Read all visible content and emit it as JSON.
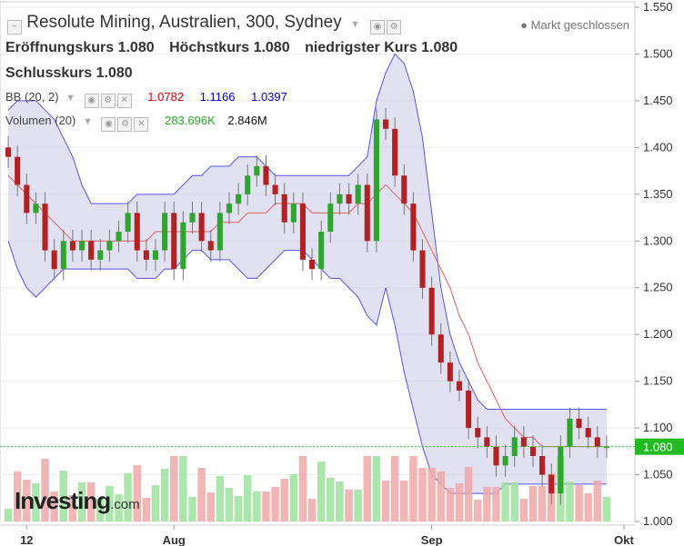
{
  "header": {
    "title": "Resolute Mining, Australien, 300, Sydney",
    "market_status": "Markt geschlossen",
    "open_label": "Eröffnungskurs",
    "open_value": "1.080",
    "high_label": "Höchstkurs",
    "high_value": "1.080",
    "low_label": "niedrigster Kurs",
    "low_value": "1.080",
    "close_label": "Schlusskurs",
    "close_value": "1.080"
  },
  "indicators": {
    "bb_label": "BB (20, 2)",
    "bb_mid": "1.0782",
    "bb_upper": "1.1166",
    "bb_lower": "1.0397",
    "vol_label": "Volumen (20)",
    "vol_value": "283.696K",
    "vol_ma": "2.846M"
  },
  "logo": {
    "name": "Investing",
    "suffix": ".com"
  },
  "last_price_tag": "1.080",
  "chart_data": {
    "type": "candlestick",
    "yticks": [
      "1.550",
      "1.500",
      "1.450",
      "1.400",
      "1.350",
      "1.300",
      "1.250",
      "1.200",
      "1.150",
      "1.100",
      "1.050",
      "1.000"
    ],
    "ylim": [
      1.0,
      1.55
    ],
    "xticks": [
      {
        "label": "12",
        "i": 2
      },
      {
        "label": "Aug",
        "i": 18
      },
      {
        "label": "Sep",
        "i": 46
      },
      {
        "label": "Okt",
        "i": 69
      }
    ],
    "close": [
      1.39,
      1.36,
      1.33,
      1.34,
      1.29,
      1.27,
      1.3,
      1.29,
      1.3,
      1.28,
      1.29,
      1.3,
      1.31,
      1.33,
      1.29,
      1.28,
      1.29,
      1.33,
      1.27,
      1.32,
      1.33,
      1.3,
      1.29,
      1.33,
      1.34,
      1.35,
      1.37,
      1.38,
      1.36,
      1.35,
      1.32,
      1.34,
      1.28,
      1.27,
      1.31,
      1.34,
      1.35,
      1.34,
      1.36,
      1.3,
      1.43,
      1.42,
      1.37,
      1.34,
      1.29,
      1.25,
      1.2,
      1.17,
      1.15,
      1.14,
      1.1,
      1.09,
      1.08,
      1.06,
      1.07,
      1.09,
      1.08,
      1.07,
      1.05,
      1.03,
      1.08,
      1.11,
      1.1,
      1.09,
      1.08,
      1.08
    ],
    "bb_mid": [
      1.37,
      1.36,
      1.35,
      1.34,
      1.33,
      1.32,
      1.31,
      1.3,
      1.3,
      1.3,
      1.3,
      1.3,
      1.3,
      1.3,
      1.3,
      1.3,
      1.31,
      1.31,
      1.31,
      1.31,
      1.31,
      1.31,
      1.31,
      1.32,
      1.32,
      1.32,
      1.33,
      1.33,
      1.33,
      1.34,
      1.34,
      1.34,
      1.34,
      1.33,
      1.33,
      1.33,
      1.33,
      1.33,
      1.34,
      1.34,
      1.35,
      1.36,
      1.35,
      1.34,
      1.33,
      1.31,
      1.29,
      1.27,
      1.25,
      1.22,
      1.2,
      1.17,
      1.15,
      1.13,
      1.11,
      1.1,
      1.09,
      1.09,
      1.08,
      1.08,
      1.08,
      1.08,
      1.08,
      1.08,
      1.08,
      1.08
    ],
    "bb_upper": [
      1.44,
      1.45,
      1.45,
      1.45,
      1.44,
      1.43,
      1.41,
      1.39,
      1.36,
      1.34,
      1.34,
      1.34,
      1.34,
      1.34,
      1.35,
      1.35,
      1.35,
      1.35,
      1.35,
      1.36,
      1.37,
      1.37,
      1.38,
      1.38,
      1.38,
      1.39,
      1.39,
      1.39,
      1.38,
      1.37,
      1.37,
      1.37,
      1.37,
      1.37,
      1.37,
      1.37,
      1.37,
      1.37,
      1.38,
      1.39,
      1.45,
      1.48,
      1.5,
      1.49,
      1.46,
      1.41,
      1.33,
      1.25,
      1.2,
      1.17,
      1.15,
      1.13,
      1.12,
      1.12,
      1.12,
      1.12,
      1.12,
      1.12,
      1.12,
      1.12,
      1.12,
      1.12,
      1.12,
      1.12,
      1.12,
      1.12
    ],
    "bb_lower": [
      1.3,
      1.27,
      1.25,
      1.24,
      1.25,
      1.26,
      1.27,
      1.27,
      1.27,
      1.27,
      1.27,
      1.27,
      1.27,
      1.27,
      1.26,
      1.26,
      1.26,
      1.27,
      1.27,
      1.28,
      1.29,
      1.29,
      1.28,
      1.28,
      1.28,
      1.27,
      1.26,
      1.26,
      1.27,
      1.28,
      1.29,
      1.29,
      1.29,
      1.28,
      1.27,
      1.26,
      1.26,
      1.25,
      1.24,
      1.22,
      1.21,
      1.25,
      1.21,
      1.16,
      1.12,
      1.08,
      1.05,
      1.04,
      1.03,
      1.03,
      1.03,
      1.03,
      1.03,
      1.03,
      1.04,
      1.04,
      1.04,
      1.04,
      1.04,
      1.04,
      1.04,
      1.04,
      1.04,
      1.04,
      1.04,
      1.04
    ]
  }
}
